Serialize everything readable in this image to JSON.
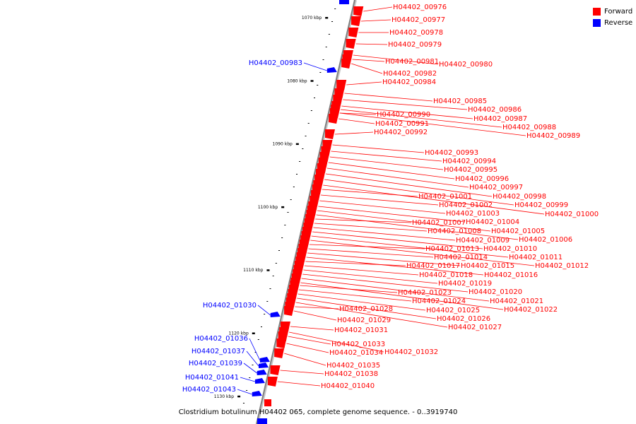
{
  "colors": {
    "forward": "#ff0000",
    "reverse": "#0000ff",
    "backbone": "#808080"
  },
  "legend": {
    "forward_label": "Forward",
    "reverse_label": "Reverse"
  },
  "caption": "Clostridium botulinum H04402 065, complete genome sequence. - 0..3919740",
  "scale": {
    "ticks": [
      {
        "label": "1070 kbp",
        "kbp": 1070
      },
      {
        "label": "1080 kbp",
        "kbp": 1080
      },
      {
        "label": "1090 kbp",
        "kbp": 1090
      },
      {
        "label": "1100 kbp",
        "kbp": 1100
      },
      {
        "label": "1110 kbp",
        "kbp": 1110
      },
      {
        "label": "1120 kbp",
        "kbp": 1120
      },
      {
        "label": "1130 kbp",
        "kbp": 1130
      }
    ]
  },
  "genes": [
    {
      "label": "H04402_00976",
      "strand": "forward"
    },
    {
      "label": "H04402_00977",
      "strand": "forward"
    },
    {
      "label": "H04402_00978",
      "strand": "forward"
    },
    {
      "label": "H04402_00979",
      "strand": "forward"
    },
    {
      "label": "H04402_00980",
      "strand": "forward"
    },
    {
      "label": "H04402_00981",
      "strand": "forward"
    },
    {
      "label": "H04402_00982",
      "strand": "forward"
    },
    {
      "label": "H04402_00983",
      "strand": "reverse"
    },
    {
      "label": "H04402_00984",
      "strand": "forward"
    },
    {
      "label": "H04402_00985",
      "strand": "forward"
    },
    {
      "label": "H04402_00986",
      "strand": "forward"
    },
    {
      "label": "H04402_00987",
      "strand": "forward"
    },
    {
      "label": "H04402_00988",
      "strand": "forward"
    },
    {
      "label": "H04402_00989",
      "strand": "forward"
    },
    {
      "label": "H04402_00990",
      "strand": "forward"
    },
    {
      "label": "H04402_00991",
      "strand": "forward"
    },
    {
      "label": "H04402_00992",
      "strand": "forward"
    },
    {
      "label": "H04402_00993",
      "strand": "forward"
    },
    {
      "label": "H04402_00994",
      "strand": "forward"
    },
    {
      "label": "H04402_00995",
      "strand": "forward"
    },
    {
      "label": "H04402_00996",
      "strand": "forward"
    },
    {
      "label": "H04402_00997",
      "strand": "forward"
    },
    {
      "label": "H04402_00998",
      "strand": "forward"
    },
    {
      "label": "H04402_00999",
      "strand": "forward"
    },
    {
      "label": "H04402_01000",
      "strand": "forward"
    },
    {
      "label": "H04402_01001",
      "strand": "forward"
    },
    {
      "label": "H04402_01002",
      "strand": "forward"
    },
    {
      "label": "H04402_01003",
      "strand": "forward"
    },
    {
      "label": "H04402_01004",
      "strand": "forward"
    },
    {
      "label": "H04402_01005",
      "strand": "forward"
    },
    {
      "label": "H04402_01006",
      "strand": "forward"
    },
    {
      "label": "H04402_01007",
      "strand": "forward"
    },
    {
      "label": "H04402_01008",
      "strand": "forward"
    },
    {
      "label": "H04402_01009",
      "strand": "forward"
    },
    {
      "label": "H04402_01010",
      "strand": "forward"
    },
    {
      "label": "H04402_01011",
      "strand": "forward"
    },
    {
      "label": "H04402_01012",
      "strand": "forward"
    },
    {
      "label": "H04402_01013",
      "strand": "forward"
    },
    {
      "label": "H04402_01014",
      "strand": "forward"
    },
    {
      "label": "H04402_01015",
      "strand": "forward"
    },
    {
      "label": "H04402_01016",
      "strand": "forward"
    },
    {
      "label": "H04402_01017",
      "strand": "forward"
    },
    {
      "label": "H04402_01018",
      "strand": "forward"
    },
    {
      "label": "H04402_01019",
      "strand": "forward"
    },
    {
      "label": "H04402_01020",
      "strand": "forward"
    },
    {
      "label": "H04402_01021",
      "strand": "forward"
    },
    {
      "label": "H04402_01022",
      "strand": "forward"
    },
    {
      "label": "H04402_01023",
      "strand": "forward"
    },
    {
      "label": "H04402_01024",
      "strand": "forward"
    },
    {
      "label": "H04402_01025",
      "strand": "forward"
    },
    {
      "label": "H04402_01026",
      "strand": "forward"
    },
    {
      "label": "H04402_01027",
      "strand": "forward"
    },
    {
      "label": "H04402_01028",
      "strand": "forward"
    },
    {
      "label": "H04402_01029",
      "strand": "forward"
    },
    {
      "label": "H04402_01030",
      "strand": "reverse"
    },
    {
      "label": "H04402_01031",
      "strand": "forward"
    },
    {
      "label": "H04402_01032",
      "strand": "forward"
    },
    {
      "label": "H04402_01033",
      "strand": "forward"
    },
    {
      "label": "H04402_01034",
      "strand": "forward"
    },
    {
      "label": "H04402_01035",
      "strand": "forward"
    },
    {
      "label": "H04402_01036",
      "strand": "reverse"
    },
    {
      "label": "H04402_01037",
      "strand": "reverse"
    },
    {
      "label": "H04402_01038",
      "strand": "forward"
    },
    {
      "label": "H04402_01039",
      "strand": "reverse"
    },
    {
      "label": "H04402_01040",
      "strand": "forward"
    },
    {
      "label": "H04402_01041",
      "strand": "reverse"
    },
    {
      "label": "H04402_01043",
      "strand": "reverse"
    }
  ]
}
